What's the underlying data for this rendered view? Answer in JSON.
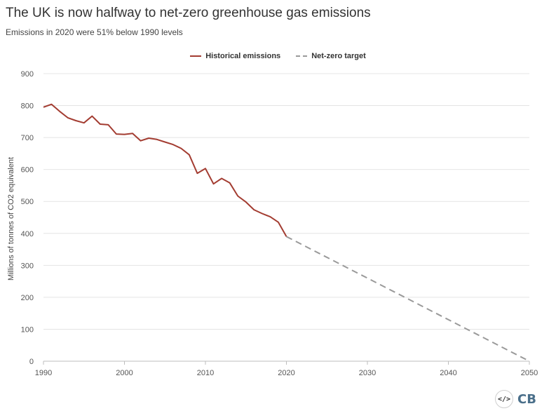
{
  "chart_data": {
    "type": "line",
    "title": "The UK is now halfway to net-zero greenhouse gas emissions",
    "subtitle": "Emissions in 2020 were 51% below 1990 levels",
    "ylabel": "Millions of tonnes of CO2 equivalent",
    "xlabel": "",
    "xlim": [
      1990,
      2050
    ],
    "ylim": [
      0,
      900
    ],
    "xticks": [
      "1990",
      "2000",
      "2010",
      "2020",
      "2030",
      "2040",
      "2050"
    ],
    "yticks": [
      "0",
      "100",
      "200",
      "300",
      "400",
      "500",
      "600",
      "700",
      "800",
      "900"
    ],
    "grid": true,
    "legend_position": "top-center",
    "series": [
      {
        "name": "Historical emissions",
        "color": "#a33c31",
        "style": "solid",
        "x": [
          1990,
          1991,
          1992,
          1993,
          1994,
          1995,
          1996,
          1997,
          1998,
          1999,
          2000,
          2001,
          2002,
          2003,
          2004,
          2005,
          2006,
          2007,
          2008,
          2009,
          2010,
          2011,
          2012,
          2013,
          2014,
          2015,
          2016,
          2017,
          2018,
          2019,
          2020
        ],
        "y": [
          795,
          804,
          782,
          762,
          753,
          746,
          767,
          742,
          740,
          711,
          710,
          713,
          690,
          698,
          694,
          686,
          678,
          666,
          646,
          588,
          603,
          555,
          572,
          558,
          517,
          498,
          474,
          462,
          452,
          435,
          390
        ]
      },
      {
        "name": "Net-zero target",
        "color": "#9a9a9a",
        "style": "dashed",
        "x": [
          2020,
          2050
        ],
        "y": [
          390,
          0
        ]
      }
    ]
  },
  "branding": {
    "icon_text": "</>",
    "logo_text": "CB"
  }
}
